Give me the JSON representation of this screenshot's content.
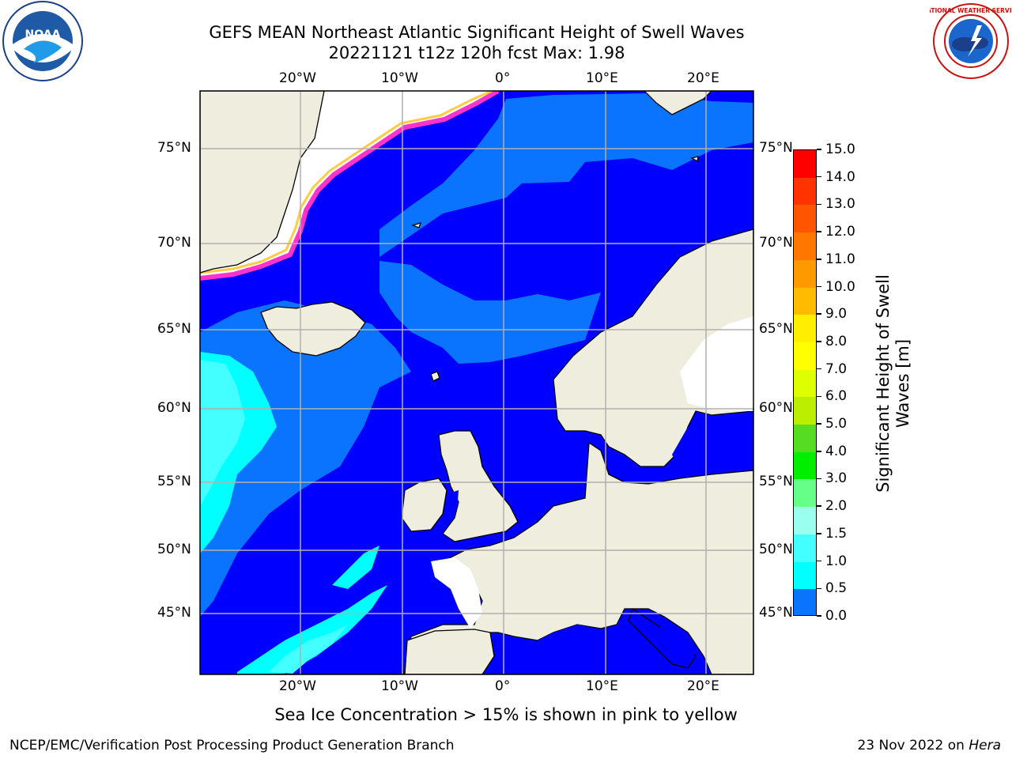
{
  "header": {
    "title_line1": "GEFS MEAN Northeast Atlantic Significant Height of Swell Waves",
    "title_line2": "20221121 t12z 120h fcst   Max: 1.98"
  },
  "logos": {
    "left": "noaa-logo",
    "right": "nws-logo",
    "left_text": "NOAA",
    "right_text": "NATIONAL WEATHER SERVICE"
  },
  "map": {
    "lon_labels": [
      "20°W",
      "10°W",
      "0°",
      "10°E",
      "20°E"
    ],
    "lat_labels": [
      "75°N",
      "70°N",
      "65°N",
      "60°N",
      "55°N",
      "50°N",
      "45°N"
    ],
    "colors": {
      "land": "#efedde",
      "ice_sea": "#ffffff",
      "ice_edge": [
        "#ff33cc",
        "#ff99aa",
        "#ffcc44",
        "#ffff55"
      ],
      "swell_0_0_5": "#0000ff",
      "swell_0_5_1": "#0a74ff",
      "swell_1_1_5": "#00ffff",
      "swell_1_5_2": "#44ffff",
      "grid": "#b0b0b0"
    }
  },
  "colorbar": {
    "label": "Significant Height of Swell Waves [m]",
    "ticks": [
      "15.0",
      "14.0",
      "13.0",
      "12.0",
      "11.0",
      "10.0",
      "9.0",
      "8.0",
      "7.0",
      "6.0",
      "5.0",
      "4.0",
      "3.0",
      "2.0",
      "1.5",
      "1.0",
      "0.5",
      "0.0"
    ],
    "colors": [
      "#ff0000",
      "#ff3300",
      "#ff5500",
      "#ff7700",
      "#ff9900",
      "#ffbb00",
      "#ffee00",
      "#ffff00",
      "#ddff00",
      "#bbee00",
      "#55dd22",
      "#00ee00",
      "#66ff88",
      "#99ffee",
      "#44ffff",
      "#00ffff",
      "#0a74ff",
      "#0000ff"
    ]
  },
  "note": "Sea Ice Concentration > 15% is shown in pink to yellow",
  "footer": {
    "left": "NCEP/EMC/Verification Post Processing Product Generation Branch",
    "right_date": "23 Nov 2022 on ",
    "right_host": "Hera"
  }
}
